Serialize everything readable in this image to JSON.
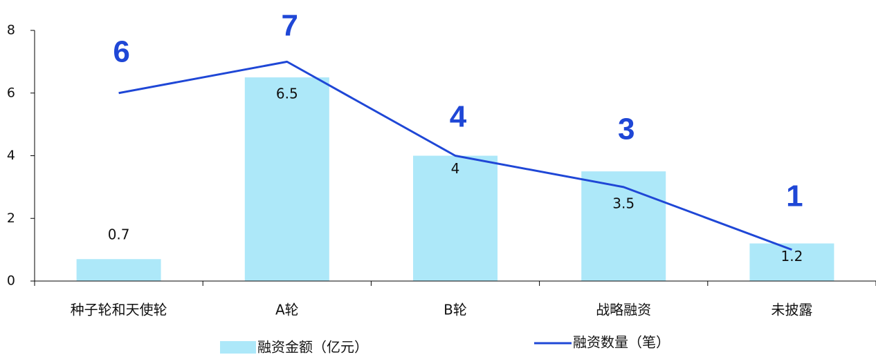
{
  "colors": {
    "bar": "#ade8f9",
    "line": "#1f47d6",
    "line_label": "#1f47d6",
    "axis": "#000000"
  },
  "chart_data": {
    "type": "bar",
    "categories": [
      "种子轮和天使轮",
      "A轮",
      "B轮",
      "战略融资",
      "未披露"
    ],
    "ylim": [
      0,
      8
    ],
    "yticks": [
      0,
      2,
      4,
      6,
      8
    ],
    "grid": false,
    "legend_position": "bottom",
    "series": [
      {
        "name": "融资金额（亿元）",
        "type": "bar",
        "values": [
          0.7,
          6.5,
          4,
          3.5,
          1.2
        ]
      },
      {
        "name": "融资数量（笔）",
        "type": "line",
        "values": [
          6,
          7,
          4,
          3,
          1
        ]
      }
    ],
    "bar_data_labels": [
      "0.7",
      "6.5",
      "4",
      "3.5",
      "1.2"
    ],
    "line_data_labels": [
      "6",
      "7",
      "4",
      "3",
      "1"
    ]
  }
}
